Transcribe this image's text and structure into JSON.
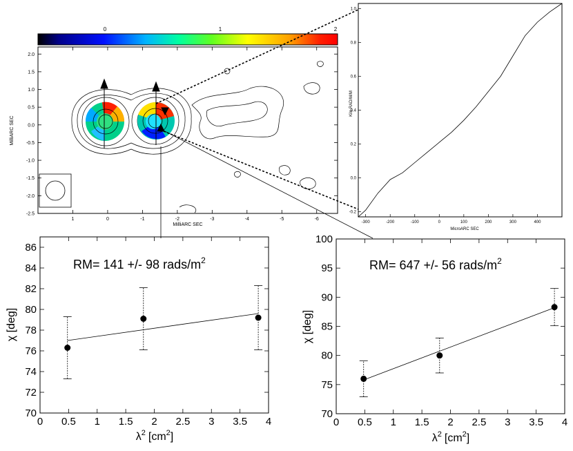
{
  "colorbar": {
    "ticks": [
      "0",
      "1",
      "2"
    ]
  },
  "chart_data": [
    {
      "id": "rm_map",
      "type": "heatmap",
      "title": "",
      "xlabel": "MilliARC SEC",
      "ylabel": "MilliARC SEC",
      "xlim": [
        2.0,
        -6.6
      ],
      "ylim": [
        -2.5,
        2.2
      ],
      "xticks": [
        1,
        0,
        -1,
        -2,
        -3,
        -4,
        -5,
        -6
      ],
      "xtick_labels": [
        "1",
        "0",
        "-1",
        "-2",
        "-3",
        "-4",
        "-5",
        "-6"
      ],
      "yticks": [
        2.0,
        1.5,
        1.0,
        0.5,
        0.0,
        -0.5,
        -1.0,
        -1.5,
        -2.0,
        -2.5
      ],
      "ytick_labels": [
        "2.0",
        "1.5",
        "1.0",
        "0.5",
        "0.0",
        "-0.5",
        "-1.0",
        "-1.5",
        "-2.0",
        "-2.5"
      ],
      "color_scale": {
        "min": 0,
        "max": 2,
        "ticks": [
          0,
          1,
          2
        ]
      }
    },
    {
      "id": "rm_slice",
      "type": "line",
      "title": "",
      "xlabel": "MicroARC SEC",
      "ylabel": "Kilo RAD/M/M",
      "xlim": [
        -330,
        500
      ],
      "ylim": [
        -0.23,
        1.03
      ],
      "xticks": [
        -300,
        -200,
        -100,
        0,
        100,
        200,
        300,
        400
      ],
      "yticks": [
        -0.2,
        0.0,
        0.2,
        0.4,
        0.6,
        0.8,
        1.0
      ],
      "ytick_labels": [
        "-0.2",
        "0.0",
        "0.2",
        "0.4",
        "0.6",
        "0.8",
        "1.0"
      ],
      "series": [
        {
          "x": [
            -330,
            -300,
            -250,
            -200,
            -150,
            -100,
            -50,
            0,
            50,
            100,
            150,
            200,
            250,
            300,
            350,
            400,
            450,
            500
          ],
          "y": [
            -0.23,
            -0.19,
            -0.09,
            -0.01,
            0.03,
            0.09,
            0.15,
            0.21,
            0.27,
            0.34,
            0.42,
            0.51,
            0.6,
            0.72,
            0.84,
            0.92,
            0.98,
            1.03
          ]
        }
      ]
    },
    {
      "id": "rm_fit_left",
      "type": "scatter",
      "title": "RM= 141 +/- 98  rads/m",
      "title_sup": "2",
      "xlabel": "λ",
      "xlabel_sup": "2",
      "xlabel_unit": "[cm",
      "xlabel_unit_sup": "2",
      "xlabel_close": "]",
      "ylabel": "χ [deg]",
      "xlim": [
        0,
        4
      ],
      "ylim": [
        70,
        87
      ],
      "xticks": [
        0,
        0.5,
        1,
        1.5,
        2,
        2.5,
        3,
        3.5,
        4
      ],
      "xtick_labels": [
        "0",
        "0.5",
        "1",
        "1.5",
        "2",
        "2.5",
        "3",
        "3.5",
        "4"
      ],
      "yticks": [
        70,
        72,
        74,
        76,
        78,
        80,
        82,
        84,
        86
      ],
      "series": [
        {
          "x": [
            0.48,
            1.81,
            3.82
          ],
          "y": [
            76.3,
            79.1,
            79.2
          ],
          "err": [
            3.0,
            3.0,
            3.1
          ]
        }
      ],
      "fit": {
        "x": [
          0.48,
          3.82
        ],
        "y": [
          77.0,
          79.6
        ]
      }
    },
    {
      "id": "rm_fit_right",
      "type": "scatter",
      "title": "RM= 647 +/- 56  rads/m",
      "title_sup": "2",
      "xlabel": "λ",
      "xlabel_sup": "2",
      "xlabel_unit": "[cm",
      "xlabel_unit_sup": "2",
      "xlabel_close": "]",
      "ylabel": "χ [deg]",
      "xlim": [
        0,
        4
      ],
      "ylim": [
        70,
        100
      ],
      "xticks": [
        0,
        0.5,
        1,
        1.5,
        2,
        2.5,
        3,
        3.5,
        4
      ],
      "xtick_labels": [
        "0",
        "0.5",
        "1",
        "1.5",
        "2",
        "2.5",
        "3",
        "3.5",
        "4"
      ],
      "yticks": [
        70,
        75,
        80,
        85,
        90,
        95,
        100
      ],
      "series": [
        {
          "x": [
            0.48,
            1.81,
            3.82
          ],
          "y": [
            76.0,
            80.0,
            88.3
          ],
          "err": [
            3.1,
            3.0,
            3.2
          ]
        }
      ],
      "fit": {
        "x": [
          0.48,
          3.82
        ],
        "y": [
          75.8,
          88.2
        ]
      }
    }
  ]
}
